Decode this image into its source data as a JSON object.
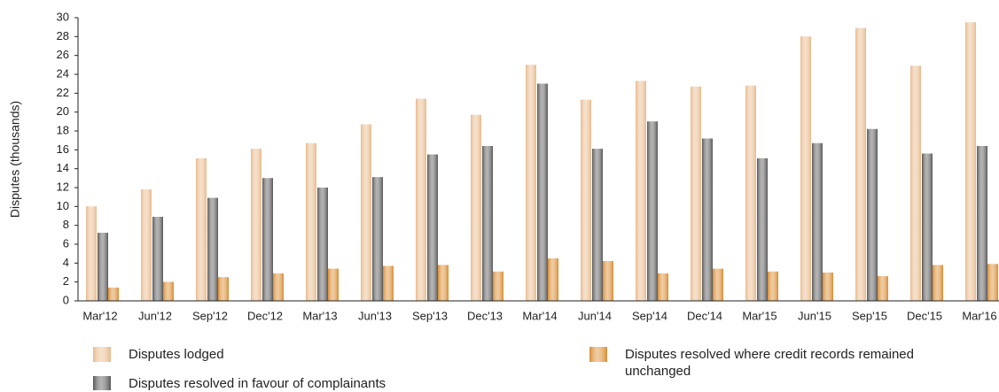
{
  "chart_data": {
    "type": "bar",
    "y_label": "Disputes (thousands)",
    "categories": [
      "Mar'12",
      "Jun'12",
      "Sep'12",
      "Dec'12",
      "Mar'13",
      "Jun'13",
      "Sep'13",
      "Dec'13",
      "Mar'14",
      "Jun'14",
      "Sep'14",
      "Dec'14",
      "Mar'15",
      "Jun'15",
      "Sep'15",
      "Dec'15",
      "Mar'16"
    ],
    "series": [
      {
        "name": "Disputes lodged",
        "color": "#e8b98a",
        "values": [
          10,
          11.8,
          15.1,
          16.1,
          16.7,
          18.7,
          21.4,
          19.7,
          25,
          21.3,
          23.3,
          22.7,
          22.8,
          28,
          28.9,
          24.9,
          29.5
        ]
      },
      {
        "name": "Disputes resolved in favour of complainants",
        "color": "#555555",
        "values": [
          7.2,
          8.9,
          10.9,
          13,
          12,
          13.1,
          15.5,
          16.4,
          23,
          16.1,
          19,
          17.2,
          15.1,
          16.7,
          18.2,
          15.6,
          16.4
        ]
      },
      {
        "name": "Disputes resolved where credit records remained unchanged",
        "color": "#d98a2e",
        "values": [
          1.4,
          2,
          2.5,
          2.9,
          3.4,
          3.7,
          3.8,
          3.1,
          4.5,
          4.2,
          2.9,
          3.4,
          3.1,
          3,
          2.6,
          3.8,
          3.9
        ]
      }
    ],
    "ylim": [
      0,
      30
    ],
    "yticks": [
      0,
      2,
      4,
      6,
      8,
      10,
      12,
      14,
      16,
      18,
      20,
      22,
      24,
      26,
      28,
      30
    ]
  }
}
